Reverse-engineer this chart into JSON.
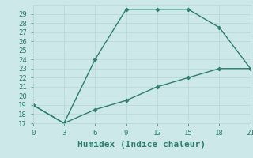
{
  "line1_x": [
    0,
    3,
    6,
    9,
    12,
    15,
    18,
    21
  ],
  "line1_y": [
    19,
    17,
    24,
    29.5,
    29.5,
    29.5,
    27.5,
    23
  ],
  "line2_x": [
    0,
    3,
    6,
    9,
    12,
    15,
    18,
    21
  ],
  "line2_y": [
    19,
    17,
    18.5,
    19.5,
    21,
    22,
    23,
    23
  ],
  "line_color": "#2e7d6e",
  "bg_color": "#cce8e8",
  "grid_color": "#b8d8d0",
  "xlabel": "Humidex (Indice chaleur)",
  "xlim": [
    0,
    21
  ],
  "ylim": [
    17,
    30
  ],
  "xticks": [
    0,
    3,
    6,
    9,
    12,
    15,
    18,
    21
  ],
  "yticks": [
    17,
    18,
    19,
    20,
    21,
    22,
    23,
    24,
    25,
    26,
    27,
    28,
    29
  ],
  "marker": "D",
  "markersize": 2.5,
  "linewidth": 1.0,
  "xlabel_fontsize": 8,
  "tick_fontsize": 6.5,
  "font_family": "monospace"
}
